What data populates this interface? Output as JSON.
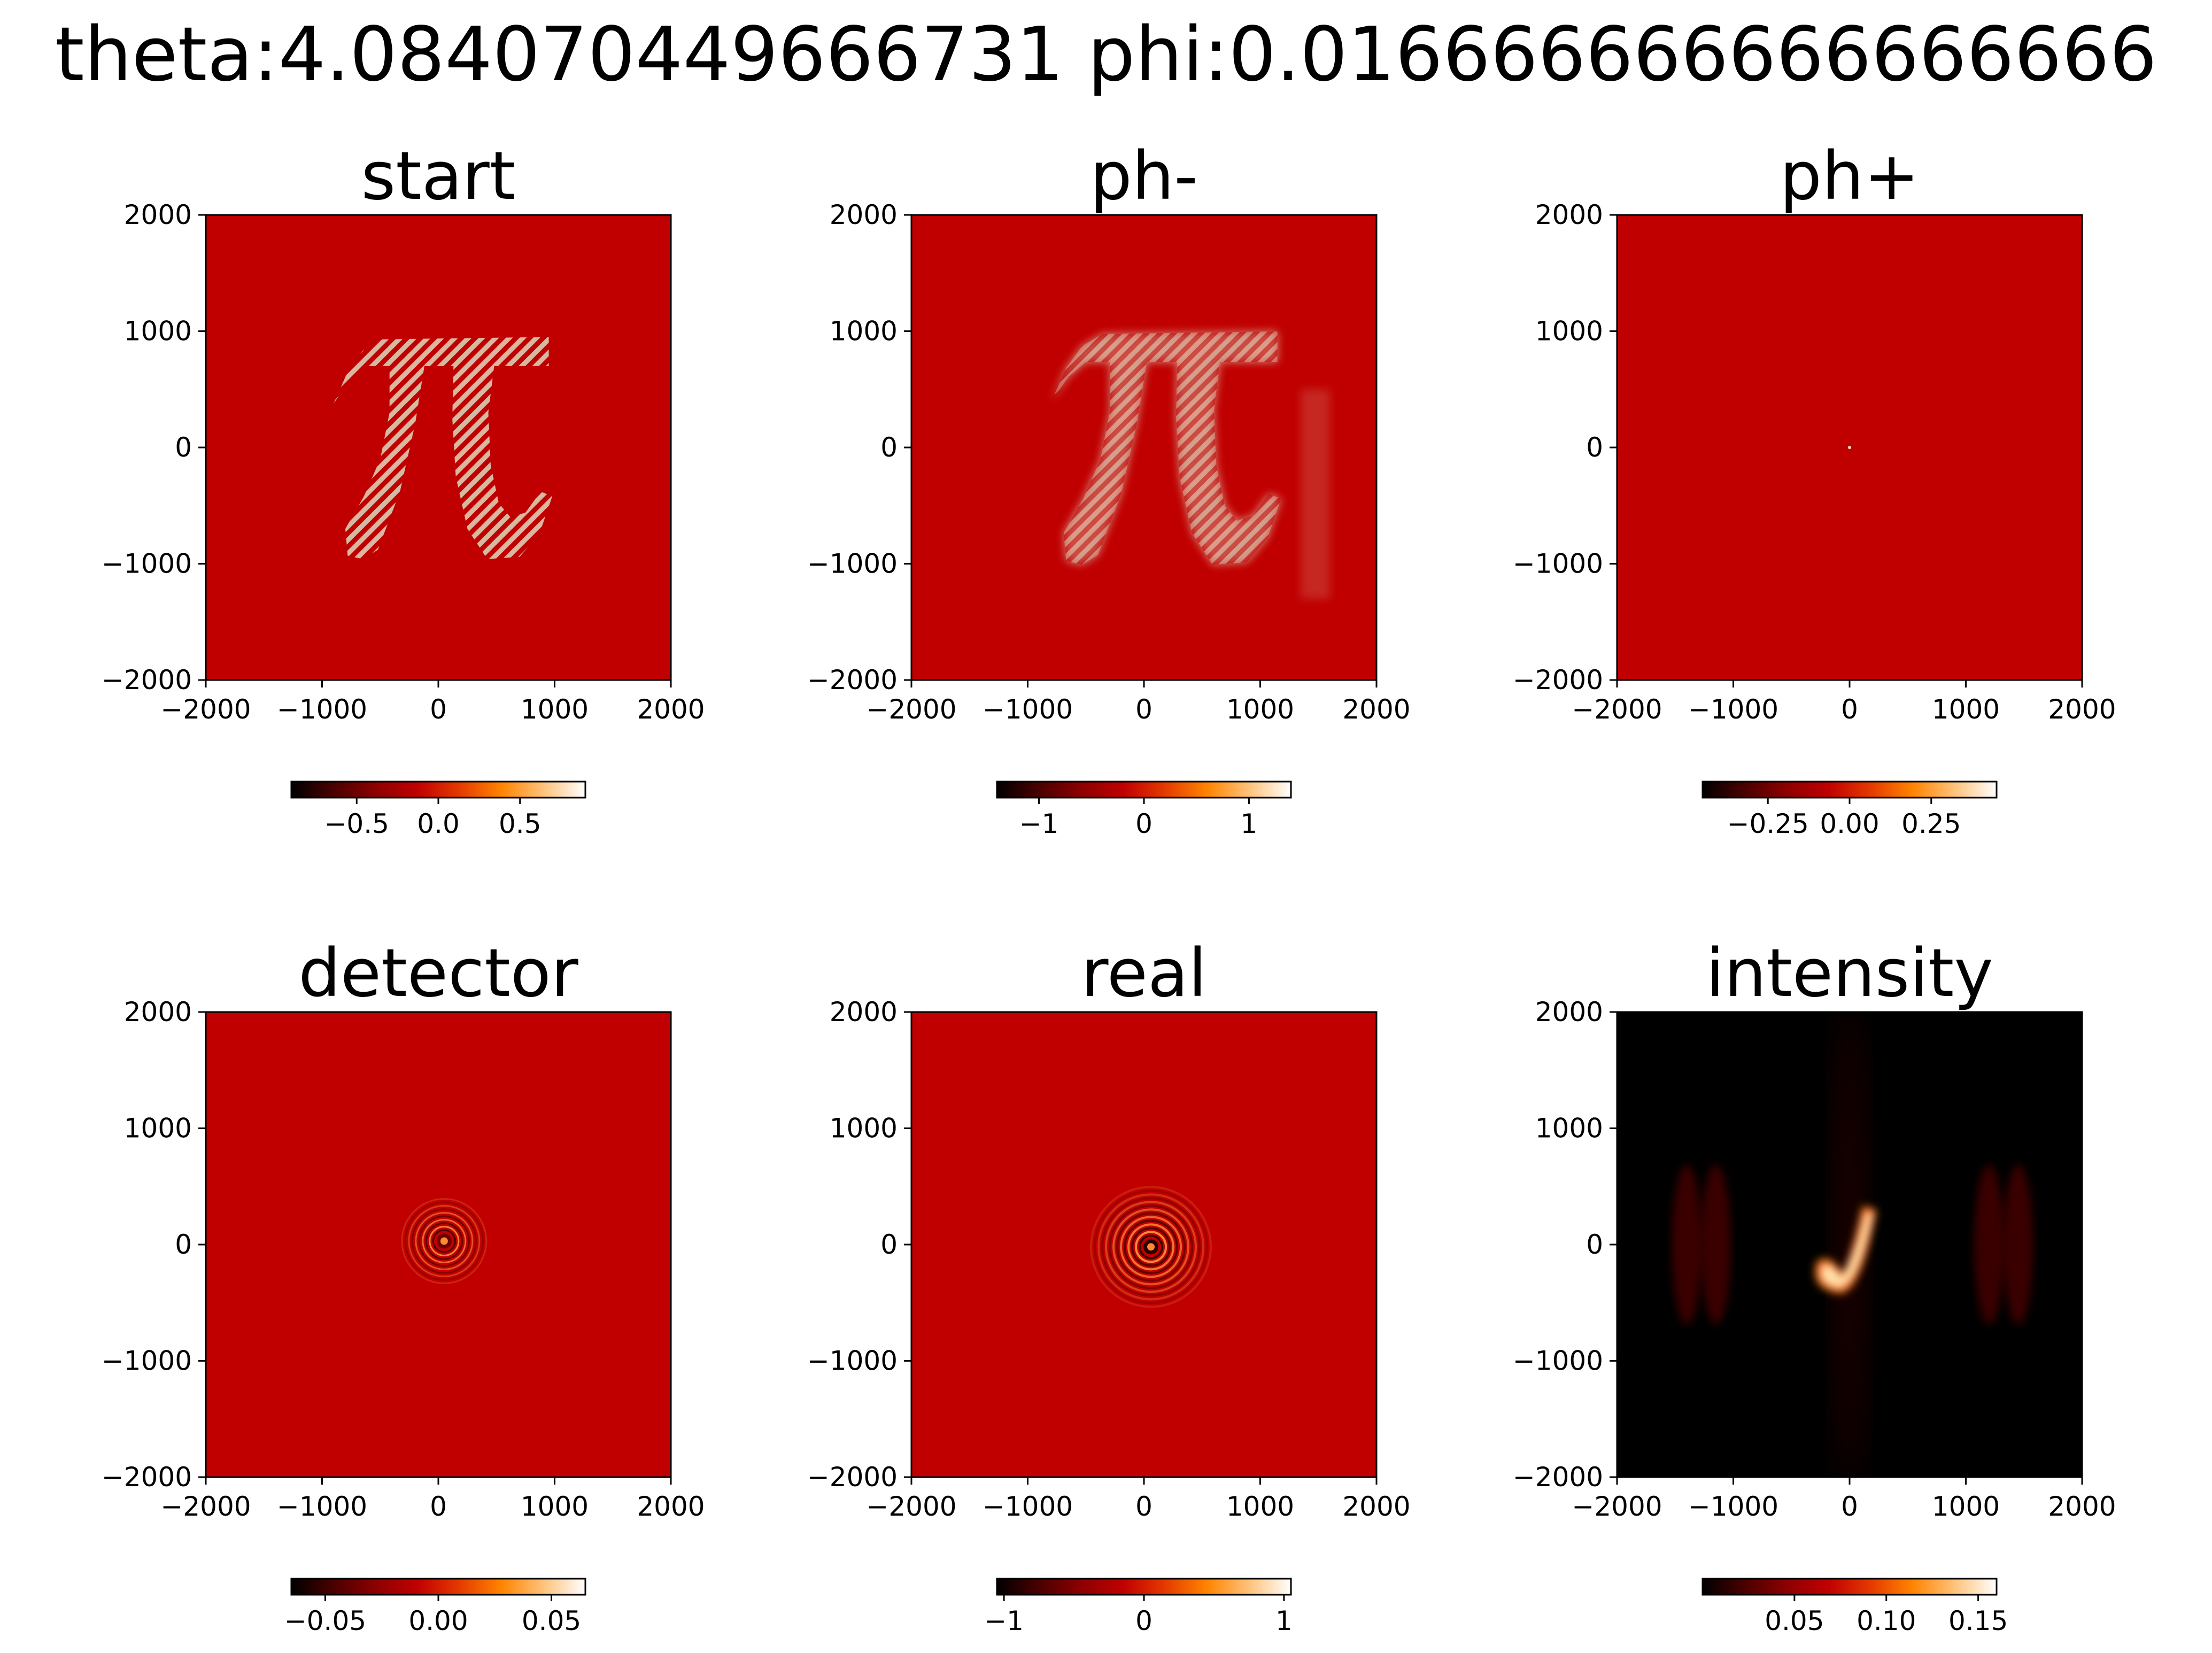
{
  "figure": {
    "suptitle": "theta:4.084070449666731 phi:0.016666666666666666"
  },
  "colors": {
    "field_background": "#c00000",
    "intensity_background": "#000000",
    "pi_fill": "#d8b8a0",
    "colormap": [
      "#000000",
      "#4a0000",
      "#8c0000",
      "#c00000",
      "#e43a00",
      "#ff8400",
      "#ffc27a",
      "#ffffff"
    ]
  },
  "chart_data": [
    {
      "type": "heatmap",
      "title": "start",
      "colormap": "gist_heat",
      "image_features": [
        "pi-symbol"
      ],
      "xlim": [
        -2000,
        2000
      ],
      "ylim": [
        -2000,
        2000
      ],
      "xticks": [
        "−2000",
        "−1000",
        "0",
        "1000",
        "2000"
      ],
      "yticks": [
        "2000",
        "1000",
        "0",
        "−1000",
        "−2000"
      ],
      "colorbar": {
        "range": [
          -0.9,
          0.9
        ],
        "ticks": [
          {
            "value": -0.5,
            "label": "−0.5"
          },
          {
            "value": 0.0,
            "label": "0.0"
          },
          {
            "value": 0.5,
            "label": "0.5"
          }
        ]
      }
    },
    {
      "type": "heatmap",
      "title": "ph-",
      "colormap": "gist_heat",
      "image_features": [
        "pi-symbol-blurred"
      ],
      "xlim": [
        -2000,
        2000
      ],
      "ylim": [
        -2000,
        2000
      ],
      "xticks": [
        "−2000",
        "−1000",
        "0",
        "1000",
        "2000"
      ],
      "yticks": [
        "2000",
        "1000",
        "0",
        "−1000",
        "−2000"
      ],
      "colorbar": {
        "range": [
          -1.4,
          1.4
        ],
        "ticks": [
          {
            "value": -1,
            "label": "−1"
          },
          {
            "value": 0,
            "label": "0"
          },
          {
            "value": 1,
            "label": "1"
          }
        ]
      }
    },
    {
      "type": "heatmap",
      "title": "ph+",
      "colormap": "gist_heat",
      "image_features": [
        "center-dot"
      ],
      "xlim": [
        -2000,
        2000
      ],
      "ylim": [
        -2000,
        2000
      ],
      "xticks": [
        "−2000",
        "−1000",
        "0",
        "1000",
        "2000"
      ],
      "yticks": [
        "2000",
        "1000",
        "0",
        "−1000",
        "−2000"
      ],
      "colorbar": {
        "range": [
          -0.45,
          0.45
        ],
        "ticks": [
          {
            "value": -0.25,
            "label": "−0.25"
          },
          {
            "value": 0.0,
            "label": "0.00"
          },
          {
            "value": 0.25,
            "label": "0.25"
          }
        ]
      }
    },
    {
      "type": "heatmap",
      "title": "detector",
      "colormap": "gist_heat",
      "image_features": [
        "rings-small"
      ],
      "xlim": [
        -2000,
        2000
      ],
      "ylim": [
        -2000,
        2000
      ],
      "xticks": [
        "−2000",
        "−1000",
        "0",
        "1000",
        "2000"
      ],
      "yticks": [
        "2000",
        "1000",
        "0",
        "−1000",
        "−2000"
      ],
      "colorbar": {
        "range": [
          -0.065,
          0.065
        ],
        "ticks": [
          {
            "value": -0.05,
            "label": "−0.05"
          },
          {
            "value": 0.0,
            "label": "0.00"
          },
          {
            "value": 0.05,
            "label": "0.05"
          }
        ]
      }
    },
    {
      "type": "heatmap",
      "title": "real",
      "colormap": "gist_heat",
      "image_features": [
        "rings-large"
      ],
      "xlim": [
        -2000,
        2000
      ],
      "ylim": [
        -2000,
        2000
      ],
      "xticks": [
        "−2000",
        "−1000",
        "0",
        "1000",
        "2000"
      ],
      "yticks": [
        "2000",
        "1000",
        "0",
        "−1000",
        "−2000"
      ],
      "colorbar": {
        "range": [
          -1.05,
          1.05
        ],
        "ticks": [
          {
            "value": -1,
            "label": "−1"
          },
          {
            "value": 0,
            "label": "0"
          },
          {
            "value": 1,
            "label": "1"
          }
        ]
      }
    },
    {
      "type": "heatmap",
      "title": "intensity",
      "colormap": "gist_heat",
      "image_features": [
        "intensity-blob"
      ],
      "xlim": [
        -2000,
        2000
      ],
      "ylim": [
        -2000,
        2000
      ],
      "xticks": [
        "−2000",
        "−1000",
        "0",
        "1000",
        "2000"
      ],
      "yticks": [
        "2000",
        "1000",
        "0",
        "−1000",
        "−2000"
      ],
      "colorbar": {
        "range": [
          0.0,
          0.16
        ],
        "ticks": [
          {
            "value": 0.05,
            "label": "0.05"
          },
          {
            "value": 0.1,
            "label": "0.10"
          },
          {
            "value": 0.15,
            "label": "0.15"
          }
        ]
      }
    }
  ]
}
